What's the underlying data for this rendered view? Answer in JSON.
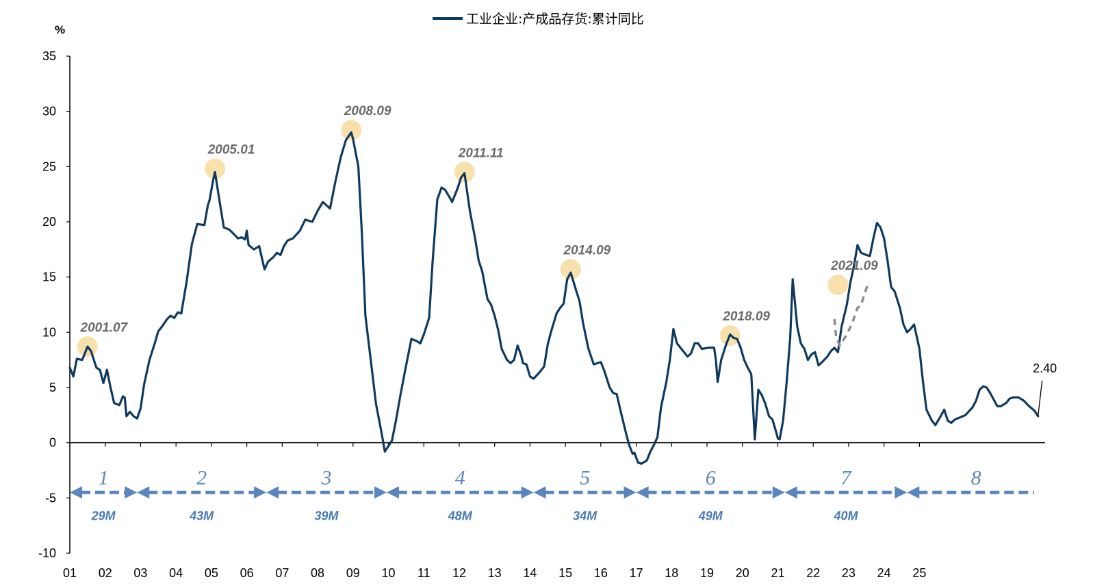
{
  "chart_data": {
    "type": "line",
    "legend": "工业企业:产成品存货:累计同比",
    "unit": "%",
    "series": [
      {
        "name": "工业企业:产成品存货:累计同比",
        "color": "#0f3a5f",
        "points": [
          [
            2001.0,
            6.8
          ],
          [
            2001.1,
            6.0
          ],
          [
            2001.2,
            7.6
          ],
          [
            2001.35,
            7.5
          ],
          [
            2001.5,
            8.7
          ],
          [
            2001.6,
            8.3
          ],
          [
            2001.75,
            6.8
          ],
          [
            2001.85,
            6.6
          ],
          [
            2001.95,
            5.4
          ],
          [
            2002.05,
            6.6
          ],
          [
            2002.15,
            5.0
          ],
          [
            2002.25,
            3.6
          ],
          [
            2002.4,
            3.4
          ],
          [
            2002.5,
            4.2
          ],
          [
            2002.55,
            4.1
          ],
          [
            2002.6,
            2.4
          ],
          [
            2002.7,
            2.8
          ],
          [
            2002.8,
            2.4
          ],
          [
            2002.9,
            2.2
          ],
          [
            2003.0,
            3.1
          ],
          [
            2003.1,
            5.3
          ],
          [
            2003.25,
            7.5
          ],
          [
            2003.4,
            9.0
          ],
          [
            2003.5,
            10.1
          ],
          [
            2003.6,
            10.5
          ],
          [
            2003.75,
            11.2
          ],
          [
            2003.85,
            11.5
          ],
          [
            2003.95,
            11.3
          ],
          [
            2004.05,
            11.8
          ],
          [
            2004.15,
            11.7
          ],
          [
            2004.3,
            14.6
          ],
          [
            2004.45,
            18.0
          ],
          [
            2004.6,
            19.8
          ],
          [
            2004.8,
            19.7
          ],
          [
            2004.9,
            21.5
          ],
          [
            2004.95,
            22.0
          ],
          [
            2005.05,
            23.8
          ],
          [
            2005.1,
            24.5
          ],
          [
            2005.2,
            22.5
          ],
          [
            2005.35,
            19.5
          ],
          [
            2005.5,
            19.3
          ],
          [
            2005.6,
            19.0
          ],
          [
            2005.75,
            18.5
          ],
          [
            2005.85,
            18.6
          ],
          [
            2005.95,
            18.4
          ],
          [
            2006.0,
            19.2
          ],
          [
            2006.05,
            17.9
          ],
          [
            2006.2,
            17.5
          ],
          [
            2006.35,
            17.8
          ],
          [
            2006.5,
            15.7
          ],
          [
            2006.6,
            16.4
          ],
          [
            2006.75,
            16.8
          ],
          [
            2006.85,
            17.2
          ],
          [
            2006.95,
            17.0
          ],
          [
            2007.05,
            17.8
          ],
          [
            2007.15,
            18.3
          ],
          [
            2007.3,
            18.5
          ],
          [
            2007.5,
            19.2
          ],
          [
            2007.65,
            20.2
          ],
          [
            2007.85,
            20.0
          ],
          [
            2008.0,
            21.0
          ],
          [
            2008.15,
            21.8
          ],
          [
            2008.25,
            21.5
          ],
          [
            2008.35,
            21.2
          ],
          [
            2008.5,
            23.6
          ],
          [
            2008.65,
            25.8
          ],
          [
            2008.8,
            27.4
          ],
          [
            2008.95,
            28.1
          ],
          [
            2009.0,
            27.5
          ],
          [
            2009.15,
            25.0
          ],
          [
            2009.25,
            19.0
          ],
          [
            2009.35,
            11.5
          ],
          [
            2009.5,
            7.5
          ],
          [
            2009.65,
            3.5
          ],
          [
            2009.8,
            1.0
          ],
          [
            2009.9,
            -0.8
          ],
          [
            2010.0,
            -0.3
          ],
          [
            2010.1,
            0.2
          ],
          [
            2010.2,
            1.8
          ],
          [
            2010.35,
            4.5
          ],
          [
            2010.5,
            7.0
          ],
          [
            2010.65,
            9.4
          ],
          [
            2010.8,
            9.2
          ],
          [
            2010.9,
            9.0
          ],
          [
            2011.0,
            9.8
          ],
          [
            2011.15,
            11.3
          ],
          [
            2011.25,
            16.5
          ],
          [
            2011.38,
            22.0
          ],
          [
            2011.5,
            23.1
          ],
          [
            2011.6,
            22.9
          ],
          [
            2011.75,
            22.1
          ],
          [
            2011.8,
            21.8
          ],
          [
            2011.95,
            23.0
          ],
          [
            2012.05,
            24.0
          ],
          [
            2012.15,
            24.4
          ],
          [
            2012.3,
            21.0
          ],
          [
            2012.45,
            18.5
          ],
          [
            2012.55,
            16.5
          ],
          [
            2012.65,
            15.5
          ],
          [
            2012.8,
            13.0
          ],
          [
            2012.9,
            12.5
          ],
          [
            2013.0,
            11.5
          ],
          [
            2013.1,
            10.2
          ],
          [
            2013.2,
            8.5
          ],
          [
            2013.35,
            7.5
          ],
          [
            2013.45,
            7.2
          ],
          [
            2013.55,
            7.5
          ],
          [
            2013.65,
            8.8
          ],
          [
            2013.75,
            7.9
          ],
          [
            2013.8,
            7.2
          ],
          [
            2013.9,
            7.1
          ],
          [
            2014.0,
            6.0
          ],
          [
            2014.1,
            5.8
          ],
          [
            2014.25,
            6.3
          ],
          [
            2014.4,
            6.9
          ],
          [
            2014.5,
            8.9
          ],
          [
            2014.6,
            10.1
          ],
          [
            2014.75,
            11.7
          ],
          [
            2014.85,
            12.2
          ],
          [
            2014.95,
            12.6
          ],
          [
            2015.05,
            14.8
          ],
          [
            2015.15,
            15.4
          ],
          [
            2015.3,
            13.8
          ],
          [
            2015.4,
            12.8
          ],
          [
            2015.5,
            10.8
          ],
          [
            2015.65,
            8.5
          ],
          [
            2015.8,
            7.1
          ],
          [
            2015.9,
            7.2
          ],
          [
            2016.0,
            7.3
          ],
          [
            2016.1,
            6.5
          ],
          [
            2016.25,
            5.0
          ],
          [
            2016.35,
            4.5
          ],
          [
            2016.45,
            4.4
          ],
          [
            2016.55,
            3.0
          ],
          [
            2016.7,
            1.0
          ],
          [
            2016.8,
            -0.2
          ],
          [
            2016.9,
            -1.0
          ],
          [
            2016.95,
            -0.9
          ],
          [
            2017.05,
            -1.8
          ],
          [
            2017.15,
            -1.9
          ],
          [
            2017.3,
            -1.6
          ],
          [
            2017.4,
            -0.8
          ],
          [
            2017.5,
            -0.2
          ],
          [
            2017.6,
            0.5
          ],
          [
            2017.7,
            3.2
          ],
          [
            2017.85,
            5.5
          ],
          [
            2017.95,
            7.5
          ],
          [
            2018.05,
            10.3
          ],
          [
            2018.15,
            9.0
          ],
          [
            2018.3,
            8.4
          ],
          [
            2018.45,
            7.8
          ],
          [
            2018.55,
            8.1
          ],
          [
            2018.65,
            9.0
          ],
          [
            2018.75,
            9.0
          ],
          [
            2018.85,
            8.5
          ],
          [
            2019.05,
            8.6
          ],
          [
            2019.2,
            8.6
          ],
          [
            2019.25,
            7.5
          ],
          [
            2019.3,
            5.5
          ],
          [
            2019.4,
            7.5
          ],
          [
            2019.55,
            9.0
          ],
          [
            2019.65,
            9.8
          ],
          [
            2019.75,
            9.5
          ],
          [
            2019.85,
            9.4
          ],
          [
            2019.95,
            8.6
          ],
          [
            2020.05,
            7.5
          ],
          [
            2020.15,
            6.8
          ],
          [
            2020.25,
            6.2
          ],
          [
            2020.35,
            0.3
          ],
          [
            2020.45,
            4.8
          ],
          [
            2020.55,
            4.3
          ],
          [
            2020.65,
            3.5
          ],
          [
            2020.75,
            2.4
          ],
          [
            2020.85,
            2.1
          ],
          [
            2020.95,
            1.0
          ],
          [
            2021.0,
            0.4
          ],
          [
            2021.05,
            0.3
          ],
          [
            2021.15,
            2.0
          ],
          [
            2021.25,
            5.5
          ],
          [
            2021.35,
            9.5
          ],
          [
            2021.42,
            14.8
          ],
          [
            2021.55,
            10.5
          ],
          [
            2021.65,
            9.0
          ],
          [
            2021.75,
            8.5
          ],
          [
            2021.85,
            7.5
          ],
          [
            2021.95,
            8.0
          ],
          [
            2022.05,
            8.2
          ],
          [
            2022.15,
            7.0
          ],
          [
            2022.25,
            7.3
          ],
          [
            2022.4,
            7.8
          ],
          [
            2022.5,
            8.3
          ],
          [
            2022.6,
            8.6
          ],
          [
            2022.7,
            8.2
          ],
          [
            2022.8,
            10.5
          ],
          [
            2022.95,
            12.5
          ],
          [
            2023.05,
            14.5
          ],
          [
            2023.15,
            16.0
          ],
          [
            2023.25,
            17.9
          ],
          [
            2023.35,
            17.2
          ],
          [
            2023.5,
            17.0
          ],
          [
            2023.6,
            16.9
          ],
          [
            2023.7,
            18.5
          ],
          [
            2023.8,
            19.9
          ],
          [
            2023.9,
            19.5
          ],
          [
            2024.0,
            18.5
          ],
          [
            2024.1,
            16.5
          ],
          [
            2024.2,
            14.1
          ],
          [
            2024.3,
            13.7
          ],
          [
            2024.45,
            12.2
          ],
          [
            2024.55,
            10.7
          ],
          [
            2024.65,
            10.0
          ],
          [
            2024.75,
            10.3
          ],
          [
            2024.85,
            10.7
          ],
          [
            2025.0,
            8.5
          ],
          [
            2025.1,
            5.5
          ],
          [
            2025.2,
            3.0
          ],
          [
            2025.35,
            2.0
          ],
          [
            2025.45,
            1.6
          ],
          [
            2025.6,
            2.4
          ],
          [
            2025.7,
            3.0
          ],
          [
            2025.8,
            2.0
          ],
          [
            2025.9,
            1.8
          ],
          [
            2026.0,
            2.1
          ],
          [
            2026.15,
            2.3
          ],
          [
            2026.3,
            2.5
          ],
          [
            2026.5,
            3.2
          ],
          [
            2026.6,
            3.8
          ],
          [
            2026.7,
            4.8
          ],
          [
            2026.8,
            5.1
          ],
          [
            2026.9,
            5.0
          ],
          [
            2027.0,
            4.5
          ],
          [
            2027.1,
            3.9
          ],
          [
            2027.2,
            3.3
          ],
          [
            2027.3,
            3.3
          ],
          [
            2027.45,
            3.6
          ],
          [
            2027.55,
            4.0
          ],
          [
            2027.65,
            4.1
          ],
          [
            2027.8,
            4.1
          ],
          [
            2027.95,
            3.8
          ],
          [
            2028.1,
            3.3
          ],
          [
            2028.25,
            2.9
          ],
          [
            2028.35,
            2.4
          ]
        ]
      }
    ],
    "dashed_segment": {
      "color": "#8c8c8c",
      "points": [
        [
          2022.6,
          11.2
        ],
        [
          2022.65,
          9.5
        ],
        [
          2022.75,
          8.8
        ],
        [
          2022.95,
          9.8
        ],
        [
          2023.1,
          10.8
        ],
        [
          2023.25,
          12.2
        ],
        [
          2023.35,
          12.4
        ],
        [
          2023.45,
          13.5
        ],
        [
          2023.55,
          14.4
        ]
      ]
    },
    "xlim": [
      2001.0,
      2028.55
    ],
    "ylim": [
      -10,
      35
    ],
    "y_ticks": [
      -10,
      -5,
      0,
      5,
      10,
      15,
      20,
      25,
      30,
      35
    ],
    "x_tick_labels": [
      "01",
      "02",
      "03",
      "04",
      "05",
      "06",
      "07",
      "08",
      "09",
      "10",
      "11",
      "12",
      "13",
      "14",
      "15",
      "16",
      "17",
      "18",
      "19",
      "20",
      "21",
      "22",
      "23",
      "24",
      "25"
    ],
    "peaks": [
      {
        "label": "2001.07",
        "x": 2001.5,
        "y": 8.7
      },
      {
        "label": "2005.01",
        "x": 2005.1,
        "y": 24.8
      },
      {
        "label": "2008.09",
        "x": 2008.95,
        "y": 28.3
      },
      {
        "label": "2011.11",
        "x": 2012.15,
        "y": 24.5
      },
      {
        "label": "2014.09",
        "x": 2015.15,
        "y": 15.7
      },
      {
        "label": "2018.09",
        "x": 2019.65,
        "y": 9.7
      },
      {
        "label": "2021.09",
        "x": 2022.7,
        "y": 14.3
      }
    ],
    "cycles": [
      {
        "number": "1",
        "duration": "29M",
        "start": 2001.0,
        "end": 2002.9
      },
      {
        "number": "2",
        "duration": "43M",
        "start": 2002.9,
        "end": 2006.55
      },
      {
        "number": "3",
        "duration": "39M",
        "start": 2006.55,
        "end": 2009.95
      },
      {
        "number": "4",
        "duration": "48M",
        "start": 2009.95,
        "end": 2014.1
      },
      {
        "number": "5",
        "duration": "34M",
        "start": 2014.1,
        "end": 2017.0
      },
      {
        "number": "6",
        "duration": "49M",
        "start": 2017.0,
        "end": 2021.2
      },
      {
        "number": "7",
        "duration": "40M",
        "start": 2021.2,
        "end": 2024.65
      },
      {
        "number": "8",
        "duration": "",
        "start": 2024.65,
        "end": 2028.55
      }
    ],
    "last_value_label": "2.40",
    "cycle_color": "#5b86bd",
    "peak_marker_color": "#f7dc9c"
  }
}
